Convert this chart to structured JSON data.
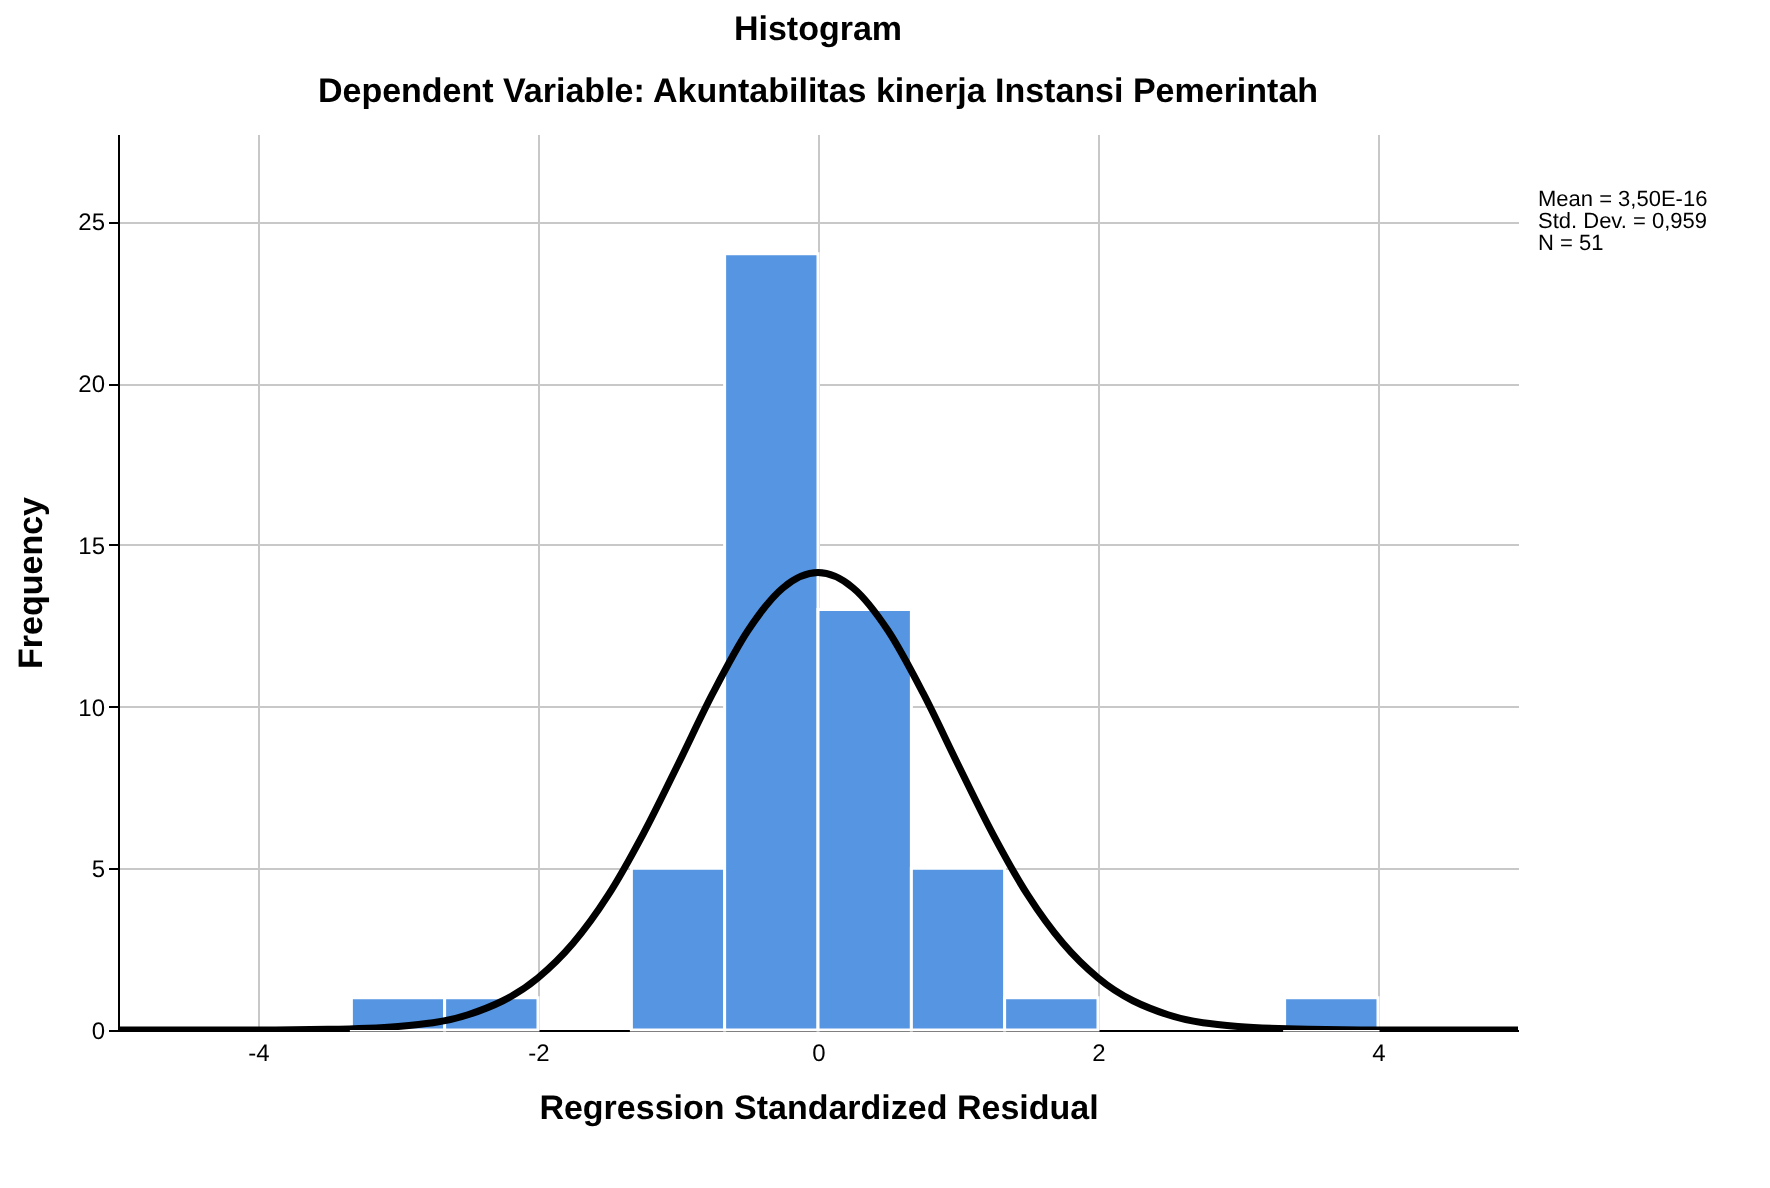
{
  "chart_data": {
    "type": "histogram",
    "title": "Histogram",
    "subtitle": "Dependent Variable: Akuntabilitas kinerja Instansi Pemerintah",
    "xlabel": "Regression Standardized Residual",
    "ylabel": "Frequency",
    "bins": [
      -3.333,
      -2.667,
      -2,
      -1.333,
      -0.667,
      0,
      0.667,
      1.333,
      2,
      2.667,
      3.333,
      4
    ],
    "values": [
      1,
      1,
      0,
      5,
      24,
      13,
      5,
      1,
      0,
      0,
      1
    ],
    "color": "#5595e2",
    "series": [
      {
        "type": "line",
        "color": "#000000",
        "x": [
          -5,
          -4,
          -3.5,
          -3,
          -2.5,
          -2,
          -1.75,
          -1.5,
          -1.25,
          -1,
          -0.75,
          -0.5,
          -0.25,
          0,
          0.25,
          0.5,
          0.75,
          1,
          1.25,
          1.5,
          1.75,
          2,
          2.5,
          3,
          3.5,
          4,
          5
        ],
        "values": [
          0,
          0,
          0.02,
          0.11,
          0.47,
          1.61,
          2.68,
          4.16,
          6.05,
          8.21,
          10.42,
          12.35,
          13.67,
          14.14,
          13.67,
          12.35,
          10.42,
          8.21,
          6.05,
          4.16,
          2.68,
          1.61,
          0.47,
          0.11,
          0.02,
          0,
          0
        ]
      }
    ],
    "xlim": [
      -5,
      5
    ],
    "xticks": [
      -4,
      -2,
      0,
      2,
      4
    ],
    "ylim": [
      0,
      27.7
    ],
    "yticks": [
      0,
      5,
      10,
      15,
      20,
      25
    ],
    "grid": true,
    "annotations": [
      "Mean = 3,50E-16",
      "Std. Dev. = 0,959",
      "N = 51"
    ]
  }
}
